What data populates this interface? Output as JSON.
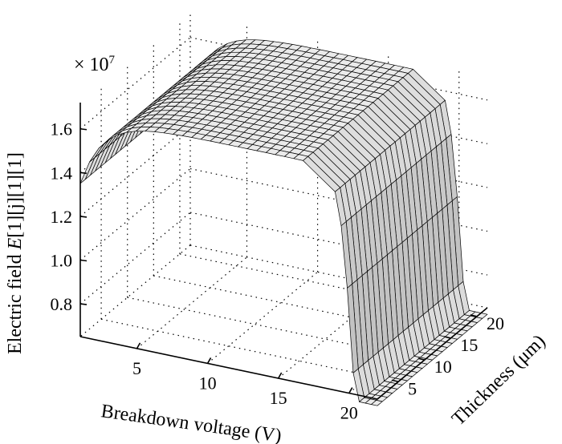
{
  "chart_data": {
    "type": "surface3d",
    "title": "",
    "xlabel": "Breakdown voltage (V)",
    "ylabel": "Thickness (μm)",
    "zlabel_prefix": "Electric field ",
    "zlabel_var": "E",
    "zlabel_suffix": "[1][j][1][1]",
    "z_multiplier": "× 10",
    "z_multiplier_exp": "7",
    "x_ticks": [
      "5",
      "10",
      "15",
      "20"
    ],
    "x_tick_values": [
      5,
      10,
      15,
      20
    ],
    "y_ticks": [
      "5",
      "10",
      "15",
      "20"
    ],
    "y_tick_values": [
      5,
      10,
      15,
      20
    ],
    "z_ticks": [
      "0.8",
      "1.0",
      "1.2",
      "1.4",
      "1.6"
    ],
    "z_tick_values": [
      0.8,
      1.0,
      1.2,
      1.4,
      1.6
    ],
    "xlim": [
      1,
      22
    ],
    "ylim": [
      1,
      22
    ],
    "zlim": [
      0.65,
      1.72
    ],
    "grid": true,
    "colormap": "gray",
    "surface_description": "plateau at about 1.67e7 across most of the domain; falls to about 1.35e7 at the minimum breakdown voltage and drops steeply toward zero at the maximum breakdown voltage",
    "plateau_value": 1.67,
    "low_voltage_edge_value": 1.35
  }
}
